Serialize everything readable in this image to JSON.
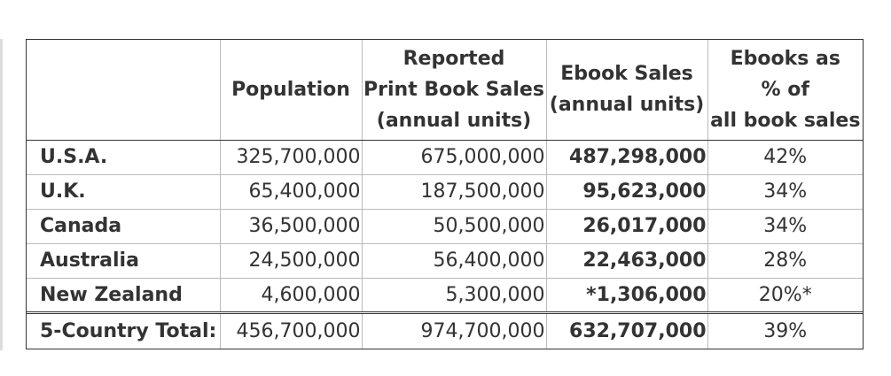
{
  "headers": {
    "population": "Population",
    "print_line1": "Reported",
    "print_line2": "Print Book Sales",
    "print_line3": "(annual units)",
    "ebook_line1": "Ebook Sales",
    "ebook_line2": "(annual units)",
    "share_line1": "Ebooks as",
    "share_line2": "% of",
    "share_line3": "all book sales"
  },
  "rows": [
    {
      "country": "U.S.A.",
      "population": "325,700,000",
      "print": "675,000,000",
      "ebook": "487,298,000",
      "share": "42%"
    },
    {
      "country": "U.K.",
      "population": "65,400,000",
      "print": "187,500,000",
      "ebook": "95,623,000",
      "share": "34%"
    },
    {
      "country": "Canada",
      "population": "36,500,000",
      "print": "50,500,000",
      "ebook": "26,017,000",
      "share": "34%"
    },
    {
      "country": "Australia",
      "population": "24,500,000",
      "print": "56,400,000",
      "ebook": "22,463,000",
      "share": "28%"
    },
    {
      "country": "New Zealand",
      "population": "4,600,000",
      "print": "5,300,000",
      "ebook": "*1,306,000",
      "share": "20%*"
    }
  ],
  "total": {
    "label": "5-Country Total:",
    "population": "456,700,000",
    "print": "974,700,000",
    "ebook": "632,707,000",
    "share": "39%"
  }
}
